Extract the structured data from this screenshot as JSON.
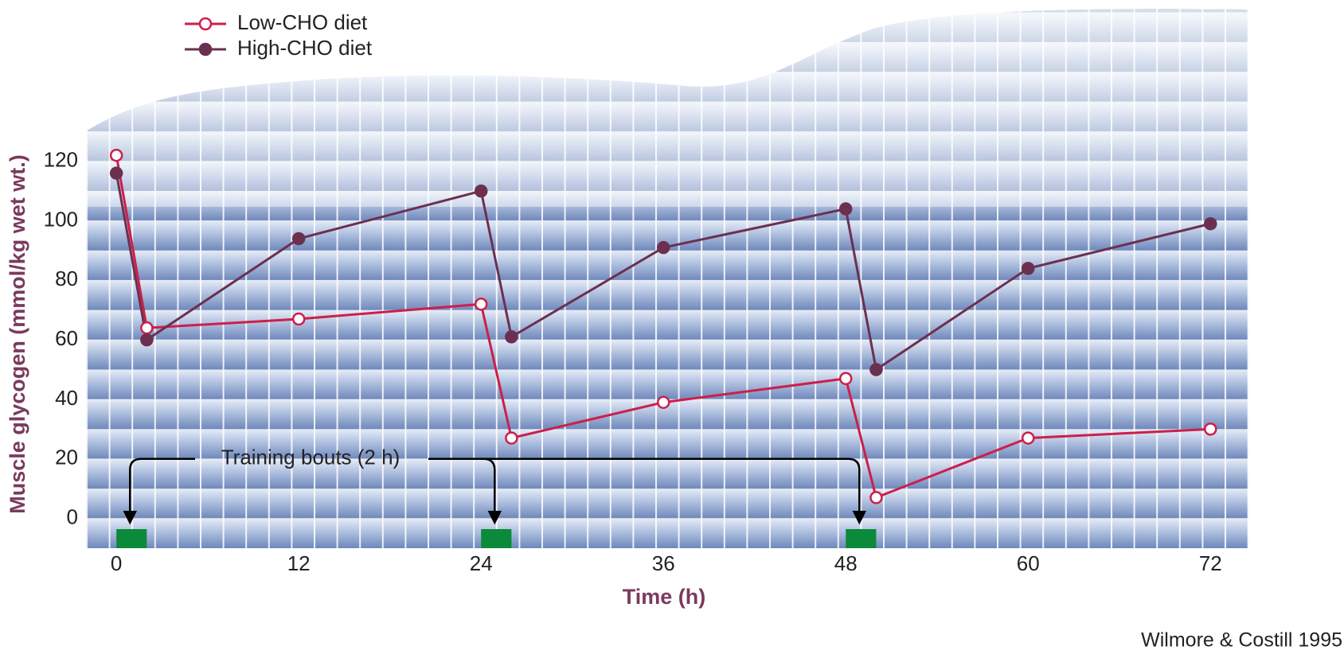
{
  "chart_data": {
    "type": "line",
    "x_label": "Time (h)",
    "y_label": "Muscle glycogen (mmol/kg wet wt.)",
    "x": [
      0,
      2,
      12,
      24,
      26,
      36,
      48,
      50,
      60,
      72
    ],
    "series": [
      {
        "name": "Low-CHO diet",
        "color": "#cc1f4a",
        "marker": "open",
        "values": [
          122,
          64,
          67,
          72,
          27,
          39,
          47,
          7,
          27,
          30
        ]
      },
      {
        "name": "High-CHO diet",
        "color": "#6b3050",
        "marker": "filled",
        "values": [
          116,
          60,
          94,
          110,
          61,
          91,
          104,
          50,
          84,
          99
        ]
      }
    ],
    "xlim": [
      -2,
      74.5
    ],
    "ylim": [
      -10,
      125
    ],
    "xticks": [
      0,
      12,
      24,
      36,
      48,
      60,
      72
    ],
    "yticks": [
      0,
      20,
      40,
      60,
      80,
      100,
      120
    ],
    "grid": true,
    "annotation": "Training bouts (2 h)",
    "training_bouts": [
      [
        0,
        2
      ],
      [
        24,
        26
      ],
      [
        48,
        50
      ]
    ],
    "training_color": "#0a8a3a",
    "source": "Wilmore & Costill 1995"
  }
}
